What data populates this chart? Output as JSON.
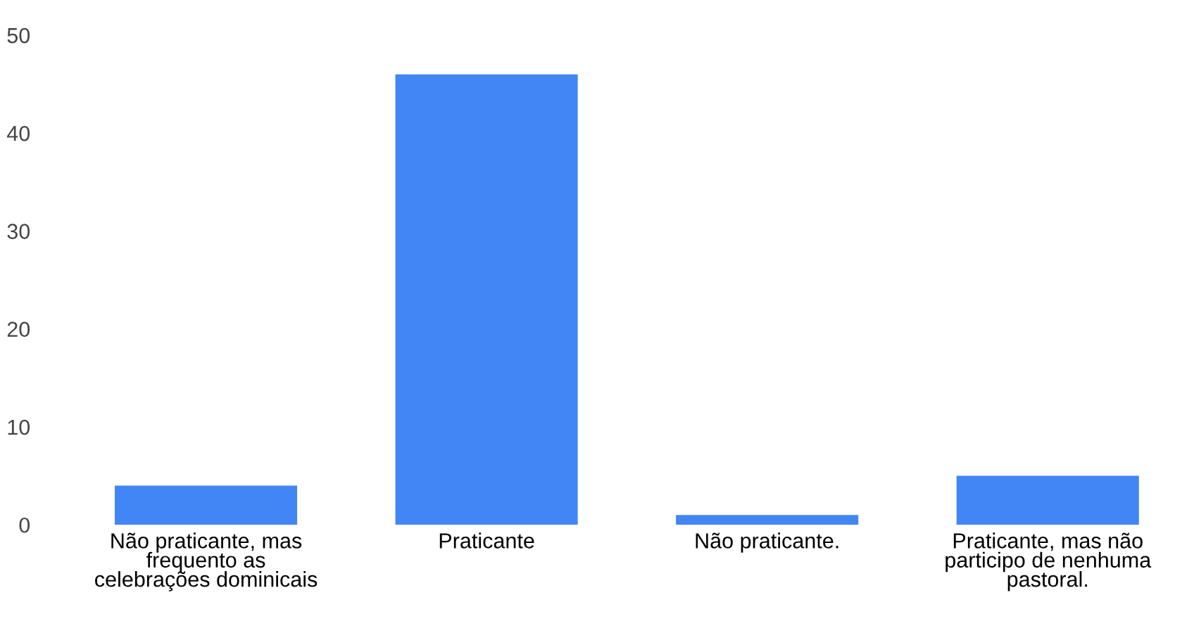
{
  "chart_data": {
    "type": "bar",
    "categories": [
      "Não praticante, mas frequento as celebrações dominicais",
      "Praticante",
      "Não praticante.",
      "Praticante, mas não participo de nenhuma pastoral."
    ],
    "values": [
      4,
      46,
      1,
      5
    ],
    "color": "#4285f4",
    "ylim": [
      0,
      50
    ],
    "yticks": [
      0,
      10,
      20,
      30,
      40,
      50
    ],
    "grid": false,
    "legend": false
  }
}
